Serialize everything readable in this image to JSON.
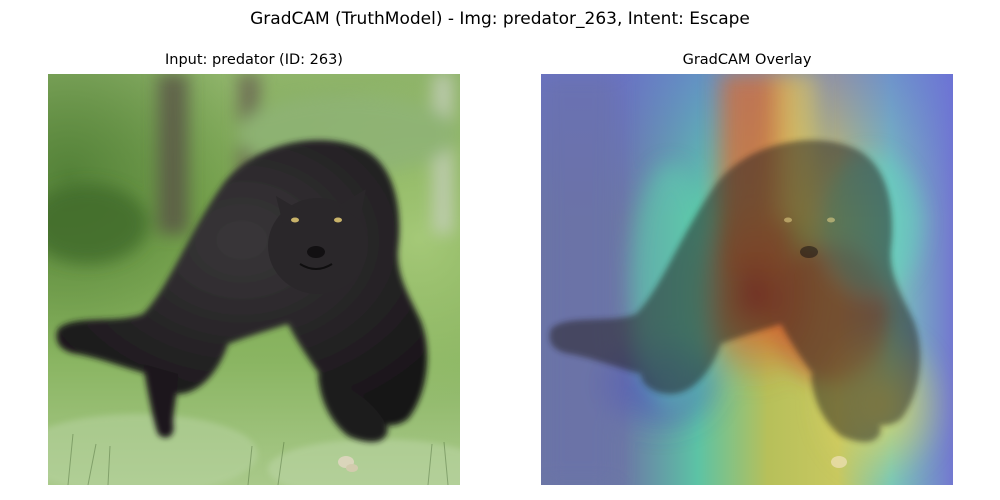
{
  "figure": {
    "title": "GradCAM (TruthModel) - Img: predator_263, Intent: Escape"
  },
  "panels": [
    {
      "title": "Input: predator (ID: 263)",
      "image": {
        "subject": "black-panther",
        "colors": {
          "grass_light": "#9bbf6a",
          "grass_dark": "#5e8a3a",
          "fur": "#1e1c1e",
          "fur_highlight": "#3a373a",
          "eye": "#c9b36a"
        }
      }
    },
    {
      "title": "GradCAM Overlay",
      "image": {
        "subject": "black-panther-heatmap-overlay",
        "colors": {
          "heat_low": "#5a5fd0",
          "heat_mid": "#5fd3b0",
          "heat_high_yellow": "#e6d35a",
          "heat_peak": "#c0322a"
        }
      }
    }
  ]
}
